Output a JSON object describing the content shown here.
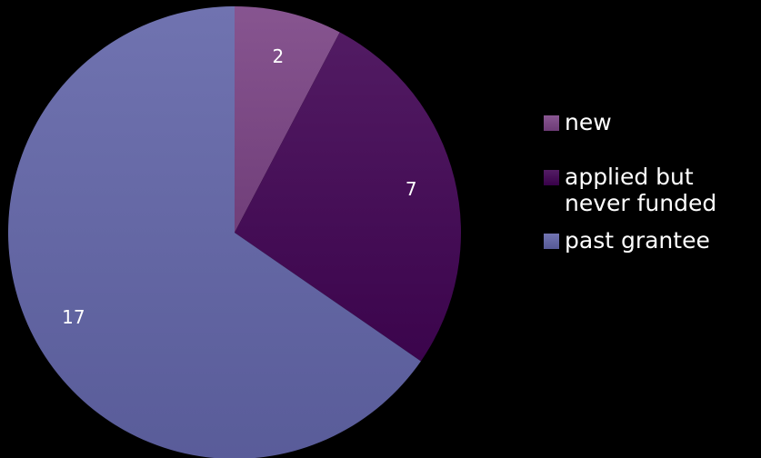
{
  "chart_data": {
    "type": "pie",
    "title": "",
    "categories": [
      "new",
      "applied but\nnever funded",
      "past grantee"
    ],
    "values": [
      2,
      7,
      17
    ],
    "data_labels": [
      "2",
      "7",
      "17"
    ],
    "colors": [
      "#7a4883",
      "#450e56",
      "#6366a3"
    ],
    "start_angle_deg": 0,
    "direction": "clockwise",
    "legend_position": "right"
  }
}
